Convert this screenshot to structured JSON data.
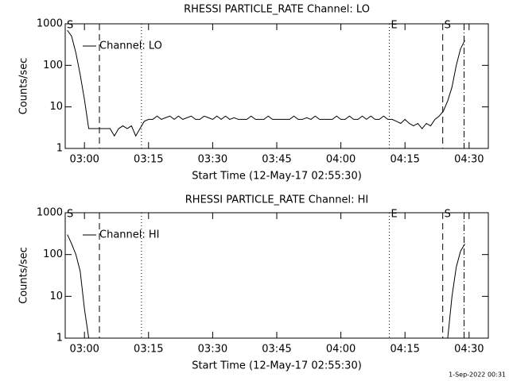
{
  "footer": "1-Sep-2022 00:31",
  "chart_data": [
    {
      "type": "line",
      "title": "RHESSI PARTICLE_RATE Channel: LO",
      "xlabel": "Start Time (12-May-17 02:55:30)",
      "ylabel": "Counts/sec",
      "log_y": true,
      "ylim": [
        1,
        1000
      ],
      "yticks": [
        1,
        10,
        100,
        1000
      ],
      "xlim": [
        "02:55:30",
        "04:34:30"
      ],
      "xticks": [
        "03:00",
        "03:15",
        "03:30",
        "03:45",
        "04:00",
        "04:15",
        "04:30"
      ],
      "markers": [
        {
          "x": "03:03:30",
          "style": "dashed"
        },
        {
          "x": "03:13:20",
          "style": "dotted"
        },
        {
          "x": "04:11:20",
          "style": "dotted"
        },
        {
          "x": "04:23:50",
          "style": "dashed"
        },
        {
          "x": "04:28:50",
          "style": "dashdot"
        }
      ],
      "annotations": [
        {
          "text": "S",
          "x": "02:55:30"
        },
        {
          "text": "E",
          "x": "04:11:20"
        },
        {
          "text": "S",
          "x": "04:23:50"
        }
      ],
      "x": [
        "02:56",
        "02:57",
        "02:58",
        "02:59",
        "03:00",
        "03:01",
        "03:02",
        "03:03",
        "03:04",
        "03:05",
        "03:06",
        "03:07",
        "03:08",
        "03:09",
        "03:10",
        "03:11",
        "03:12",
        "03:13",
        "03:14",
        "03:15",
        "03:16",
        "03:17",
        "03:18",
        "03:19",
        "03:20",
        "03:21",
        "03:22",
        "03:23",
        "03:24",
        "03:25",
        "03:26",
        "03:27",
        "03:28",
        "03:29",
        "03:30",
        "03:31",
        "03:32",
        "03:33",
        "03:34",
        "03:35",
        "03:36",
        "03:37",
        "03:38",
        "03:39",
        "03:40",
        "03:41",
        "03:42",
        "03:43",
        "03:44",
        "03:45",
        "03:46",
        "03:47",
        "03:48",
        "03:49",
        "03:50",
        "03:51",
        "03:52",
        "03:53",
        "03:54",
        "03:55",
        "03:56",
        "03:57",
        "03:58",
        "03:59",
        "04:00",
        "04:01",
        "04:02",
        "04:03",
        "04:04",
        "04:05",
        "04:06",
        "04:07",
        "04:08",
        "04:09",
        "04:10",
        "04:11",
        "04:12",
        "04:13",
        "04:14",
        "04:15",
        "04:16",
        "04:17",
        "04:18",
        "04:19",
        "04:20",
        "04:21",
        "04:22",
        "04:23",
        "04:24",
        "04:25",
        "04:26",
        "04:27",
        "04:28",
        "04:29"
      ],
      "series": [
        {
          "name": "Channel: LO",
          "color": "#000000",
          "values": [
            700,
            500,
            200,
            60,
            15,
            3,
            3,
            3,
            3,
            3,
            3,
            2,
            3,
            3.5,
            3,
            3.5,
            2,
            3,
            4.5,
            5,
            5,
            6,
            5,
            5.5,
            6,
            5,
            6,
            5,
            5.5,
            6,
            5,
            5,
            6,
            5.5,
            5,
            6,
            5,
            6,
            5,
            5.5,
            5,
            5,
            5,
            6,
            5,
            5,
            5,
            6,
            5,
            5,
            5,
            5,
            5,
            6,
            5,
            5,
            5.5,
            5,
            6,
            5,
            5,
            5,
            5,
            6,
            5,
            5,
            6,
            5,
            5,
            6,
            5,
            6,
            5,
            5,
            6,
            5,
            5,
            4.5,
            4,
            5,
            4,
            3.5,
            4,
            3,
            4,
            3.5,
            5,
            6,
            8,
            14,
            30,
            100,
            250,
            400
          ]
        }
      ]
    },
    {
      "type": "line",
      "title": "RHESSI PARTICLE_RATE Channel: HI",
      "xlabel": "Start Time (12-May-17 02:55:30)",
      "ylabel": "Counts/sec",
      "log_y": true,
      "ylim": [
        1,
        1000
      ],
      "yticks": [
        1,
        10,
        100,
        1000
      ],
      "xlim": [
        "02:55:30",
        "04:34:30"
      ],
      "xticks": [
        "03:00",
        "03:15",
        "03:30",
        "03:45",
        "04:00",
        "04:15",
        "04:30"
      ],
      "markers": [
        {
          "x": "03:03:30",
          "style": "dashed"
        },
        {
          "x": "03:13:20",
          "style": "dotted"
        },
        {
          "x": "04:11:20",
          "style": "dotted"
        },
        {
          "x": "04:23:50",
          "style": "dashed"
        },
        {
          "x": "04:28:50",
          "style": "dashdot"
        }
      ],
      "annotations": [
        {
          "text": "S",
          "x": "02:55:30"
        },
        {
          "text": "E",
          "x": "04:11:20"
        },
        {
          "text": "S",
          "x": "04:23:50"
        }
      ],
      "x": [
        "02:56",
        "02:57",
        "02:58",
        "02:59",
        "03:00",
        "03:01",
        "03:02",
        "04:25",
        "04:26",
        "04:27",
        "04:28",
        "04:29"
      ],
      "series": [
        {
          "name": "Channel: HI",
          "color": "#000000",
          "values": [
            300,
            180,
            100,
            40,
            5,
            1,
            null,
            1,
            10,
            50,
            120,
            180
          ]
        }
      ]
    }
  ]
}
